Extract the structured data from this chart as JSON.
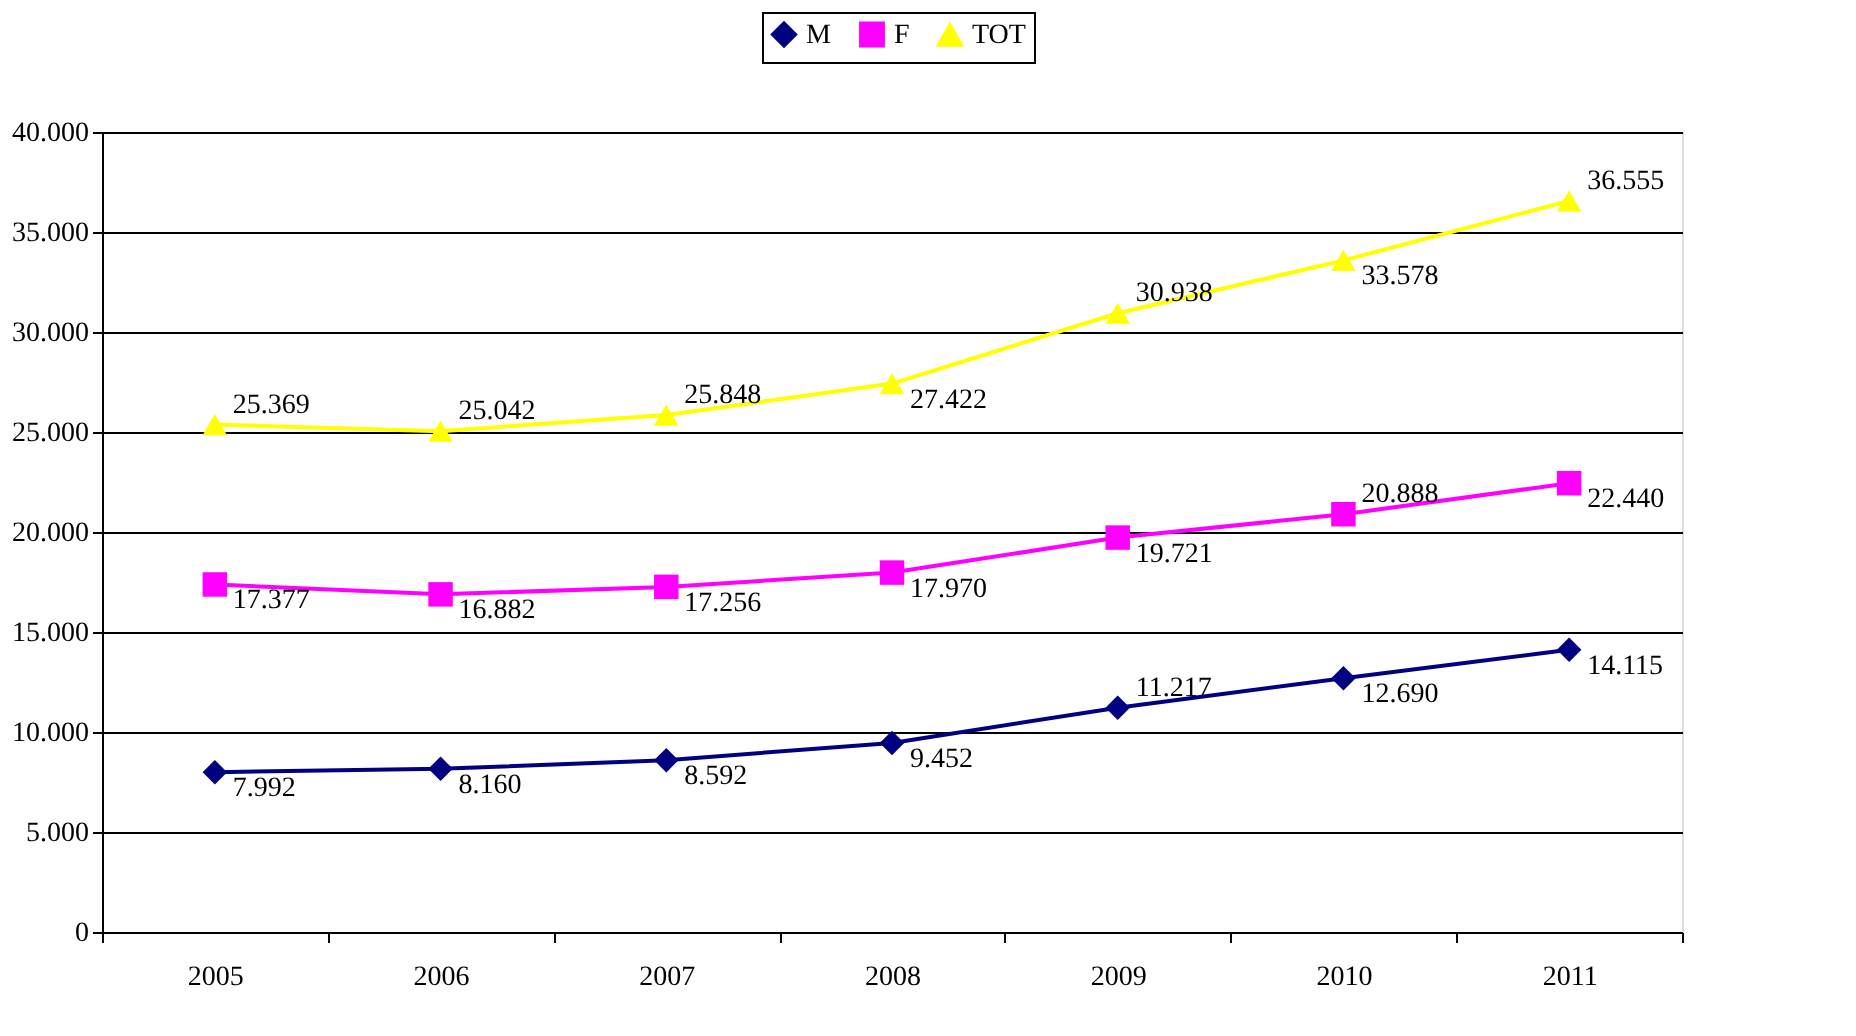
{
  "chart_data": {
    "type": "line",
    "categories": [
      "2005",
      "2006",
      "2007",
      "2008",
      "2009",
      "2010",
      "2011"
    ],
    "series": [
      {
        "name": "M",
        "color": "#000080",
        "marker": "diamond",
        "values": [
          7992,
          8160,
          8592,
          9452,
          11217,
          12690,
          14115
        ],
        "value_labels": [
          "7.992",
          "8.160",
          "8.592",
          "9.452",
          "11.217",
          "12.690",
          "14.115"
        ]
      },
      {
        "name": "F",
        "color": "#ff00ff",
        "marker": "square",
        "values": [
          17377,
          16882,
          17256,
          17970,
          19721,
          20888,
          22440
        ],
        "value_labels": [
          "17.377",
          "16.882",
          "17.256",
          "17.970",
          "19.721",
          "20.888",
          "22.440"
        ]
      },
      {
        "name": "TOT",
        "color": "#ffff00",
        "marker": "triangle",
        "values": [
          25369,
          25042,
          25848,
          27422,
          30938,
          33578,
          36555
        ],
        "value_labels": [
          "25.369",
          "25.042",
          "25.848",
          "27.422",
          "30.938",
          "33.578",
          "36.555"
        ]
      }
    ],
    "ylim": [
      0,
      40000
    ],
    "yticks": [
      {
        "value": 0,
        "label": "0"
      },
      {
        "value": 5000,
        "label": "5.000"
      },
      {
        "value": 10000,
        "label": "10.000"
      },
      {
        "value": 15000,
        "label": "15.000"
      },
      {
        "value": 20000,
        "label": "20.000"
      },
      {
        "value": 25000,
        "label": "25.000"
      },
      {
        "value": 30000,
        "label": "30.000"
      },
      {
        "value": 35000,
        "label": "35.000"
      },
      {
        "value": 40000,
        "label": "40.000"
      }
    ],
    "grid": "y",
    "legend": "top",
    "line_style": "solid"
  }
}
